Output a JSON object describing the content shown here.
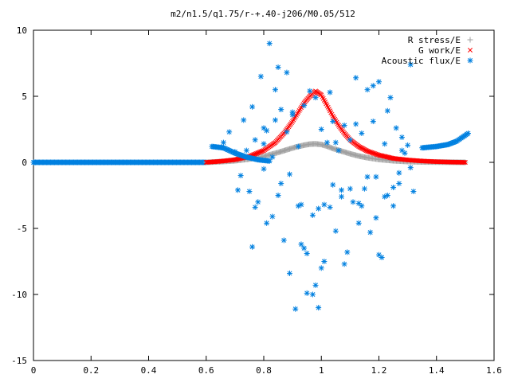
{
  "chart_data": {
    "type": "scatter",
    "title": "m2/n1.5/q1.75/r-+.40-j206/M0.05/512",
    "xlabel": "",
    "ylabel": "",
    "xlim": [
      0,
      1.6
    ],
    "ylim": [
      -15,
      10
    ],
    "xticks": [
      "0",
      "0.2",
      "0.4",
      "0.6",
      "0.8",
      "1",
      "1.2",
      "1.4",
      "1.6"
    ],
    "yticks": [
      "10",
      "5",
      "0",
      "-5",
      "-10",
      "-15"
    ],
    "grid": false,
    "legend_position": "top-right",
    "colors": {
      "r_stress": "#a0a0a0",
      "g_work": "#ff0000",
      "acoustic": "#0080e0"
    },
    "series": [
      {
        "name": "R stress/E",
        "marker": "plus",
        "x": [
          0.6,
          0.65,
          0.7,
          0.75,
          0.8,
          0.85,
          0.88,
          0.91,
          0.94,
          0.96,
          0.98,
          1.0,
          1.02,
          1.04,
          1.07,
          1.1,
          1.13,
          1.16,
          1.2,
          1.25,
          1.3,
          1.35,
          1.4,
          1.45,
          1.5
        ],
        "y": [
          0.0,
          0.05,
          0.12,
          0.25,
          0.45,
          0.75,
          0.95,
          1.15,
          1.3,
          1.38,
          1.4,
          1.35,
          1.22,
          1.05,
          0.85,
          0.65,
          0.48,
          0.35,
          0.22,
          0.12,
          0.06,
          0.03,
          0.02,
          0.01,
          0.0
        ]
      },
      {
        "name": "G work/E",
        "marker": "cross",
        "x": [
          0.6,
          0.65,
          0.7,
          0.75,
          0.8,
          0.84,
          0.87,
          0.9,
          0.92,
          0.94,
          0.96,
          0.98,
          1.0,
          1.02,
          1.04,
          1.06,
          1.08,
          1.1,
          1.13,
          1.16,
          1.2,
          1.25,
          1.3,
          1.35,
          1.4,
          1.45,
          1.5
        ],
        "y": [
          0.0,
          0.08,
          0.2,
          0.45,
          0.9,
          1.5,
          2.2,
          3.1,
          3.8,
          4.5,
          5.0,
          5.4,
          5.1,
          4.3,
          3.5,
          2.8,
          2.2,
          1.7,
          1.2,
          0.85,
          0.55,
          0.3,
          0.18,
          0.1,
          0.05,
          0.02,
          0.0
        ]
      },
      {
        "name": "Acoustic flux/E",
        "marker": "star",
        "x": [
          0.62,
          0.66,
          0.7,
          0.74,
          0.78,
          0.82,
          1.35,
          1.4,
          1.44,
          1.47,
          1.49,
          1.51,
          0.66,
          0.68,
          0.7,
          0.72,
          0.73,
          0.75,
          0.76,
          0.77,
          0.78,
          0.79,
          0.8,
          0.81,
          0.82,
          0.83,
          0.84,
          0.85,
          0.86,
          0.87,
          0.88,
          0.89,
          0.9,
          0.91,
          0.92,
          0.93,
          0.94,
          0.95,
          0.96,
          0.97,
          0.98,
          0.99,
          1.0,
          1.01,
          1.02,
          1.03,
          1.04,
          1.05,
          1.06,
          1.07,
          1.08,
          1.09,
          1.1,
          1.11,
          1.12,
          1.13,
          1.14,
          1.15,
          1.16,
          1.17,
          1.18,
          1.19,
          1.2,
          1.21,
          1.22,
          1.23,
          1.24,
          1.25,
          1.26,
          1.27,
          1.28,
          1.29,
          1.3,
          1.31,
          1.32,
          0.71,
          0.74,
          0.77,
          0.8,
          0.83,
          0.86,
          0.89,
          0.92,
          0.95,
          0.98,
          1.01,
          1.04,
          1.07,
          1.1,
          1.13,
          1.16,
          1.19,
          1.22,
          1.25,
          1.28,
          1.31,
          0.81,
          0.85,
          0.9,
          0.93,
          0.97,
          1.0,
          1.05,
          1.12,
          1.18,
          1.23,
          0.76,
          0.8,
          0.84,
          0.88,
          0.94,
          0.99,
          1.03,
          1.08,
          1.14,
          1.2,
          1.27
        ],
        "y": [
          1.2,
          1.1,
          0.7,
          0.4,
          0.2,
          0.1,
          1.1,
          1.2,
          1.35,
          1.6,
          1.9,
          2.2,
          1.5,
          2.3,
          0.8,
          -1.0,
          3.2,
          -2.2,
          4.2,
          1.7,
          -3.0,
          6.5,
          2.6,
          -4.6,
          9.0,
          0.4,
          5.5,
          -2.5,
          4.0,
          -5.9,
          2.3,
          -8.4,
          3.6,
          -11.1,
          1.2,
          -6.2,
          4.3,
          -9.9,
          5.4,
          -4.0,
          4.9,
          -11.0,
          2.5,
          -7.5,
          1.5,
          -3.4,
          3.1,
          -5.2,
          0.9,
          -2.1,
          2.8,
          -6.8,
          1.7,
          -3.0,
          6.4,
          -4.6,
          2.2,
          -2.0,
          5.5,
          -5.3,
          3.1,
          -1.1,
          6.1,
          -7.2,
          1.4,
          -2.5,
          4.9,
          -3.3,
          2.6,
          -1.6,
          1.9,
          0.7,
          1.3,
          7.4,
          -2.2,
          -2.1,
          0.9,
          -3.4,
          1.4,
          -4.1,
          -1.6,
          -0.9,
          -3.3,
          -6.9,
          -9.3,
          -3.2,
          -1.7,
          -2.6,
          -2.0,
          -3.1,
          -1.1,
          -4.2,
          -2.6,
          -1.9,
          0.9,
          -0.4,
          2.4,
          7.2,
          3.8,
          -3.2,
          -10.0,
          -8.0,
          1.5,
          2.9,
          5.8,
          3.9,
          -6.4,
          -0.5,
          3.2,
          6.8,
          -6.5,
          -3.5,
          5.3,
          -7.7,
          -3.3,
          -7.0,
          -0.8
        ]
      }
    ],
    "acoustic_baseline": {
      "x_start": 0.0,
      "x_end": 0.6,
      "y": 0.0
    }
  }
}
